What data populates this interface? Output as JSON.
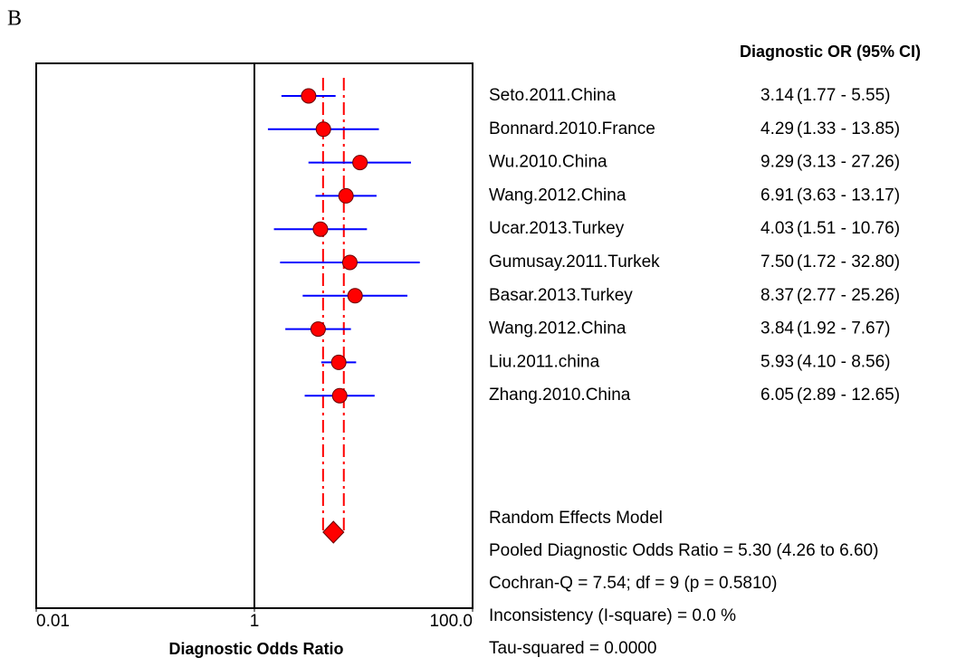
{
  "panel_label": "B",
  "chart_data": {
    "type": "forest",
    "column_header": "Diagnostic OR (95% CI)",
    "xlabel": "Diagnostic Odds Ratio",
    "log_x": true,
    "xlim": [
      0.01,
      100
    ],
    "xticks": [
      0.01,
      1,
      {
        "value": 100,
        "label": "100.0"
      }
    ],
    "reference_line": 1,
    "point_color": "#ff0000",
    "ci_color": "#0000ff",
    "pooled_color": "#ff0000",
    "categories": [
      "Seto.2011.China",
      "Bonnard.2010.France",
      "Wu.2010.China",
      "Wang.2012.China",
      "Ucar.2013.Turkey",
      "Gumusay.2011.Turkek",
      "Basar.2013.Turkey",
      "Wang.2012.China",
      "Liu.2011.china",
      "Zhang.2010.China"
    ],
    "values": [
      3.14,
      4.29,
      9.29,
      6.91,
      4.03,
      7.5,
      8.37,
      3.84,
      5.93,
      6.05
    ],
    "value_labels": [
      "3.14",
      "4.29",
      "9.29",
      "6.91",
      "4.03",
      "7.50",
      "8.37",
      "3.84",
      "5.93",
      "6.05"
    ],
    "lower": [
      1.77,
      1.33,
      3.13,
      3.63,
      1.51,
      1.72,
      2.77,
      1.92,
      4.1,
      2.89
    ],
    "upper": [
      5.55,
      13.85,
      27.26,
      13.17,
      10.76,
      32.8,
      25.26,
      7.67,
      8.56,
      12.65
    ],
    "ci_labels": [
      "(1.77 - 5.55)",
      "(1.33 - 13.85)",
      "(3.13 - 27.26)",
      "(3.63 - 13.17)",
      "(1.51 - 10.76)",
      "(1.72 - 32.80)",
      "(2.77 - 25.26)",
      "(1.92 - 7.67)",
      "(4.10 - 8.56)",
      "(2.89 - 12.65)"
    ],
    "pooled": {
      "value": 5.3,
      "lower": 4.26,
      "upper": 6.6
    },
    "stats": [
      "Random Effects Model",
      "Pooled Diagnostic Odds Ratio = 5.30 (4.26 to 6.60)",
      "Cochran-Q = 7.54; df =  9 (p = 0.5810)",
      "Inconsistency (I-square) = 0.0 %",
      "Tau-squared = 0.0000"
    ]
  }
}
